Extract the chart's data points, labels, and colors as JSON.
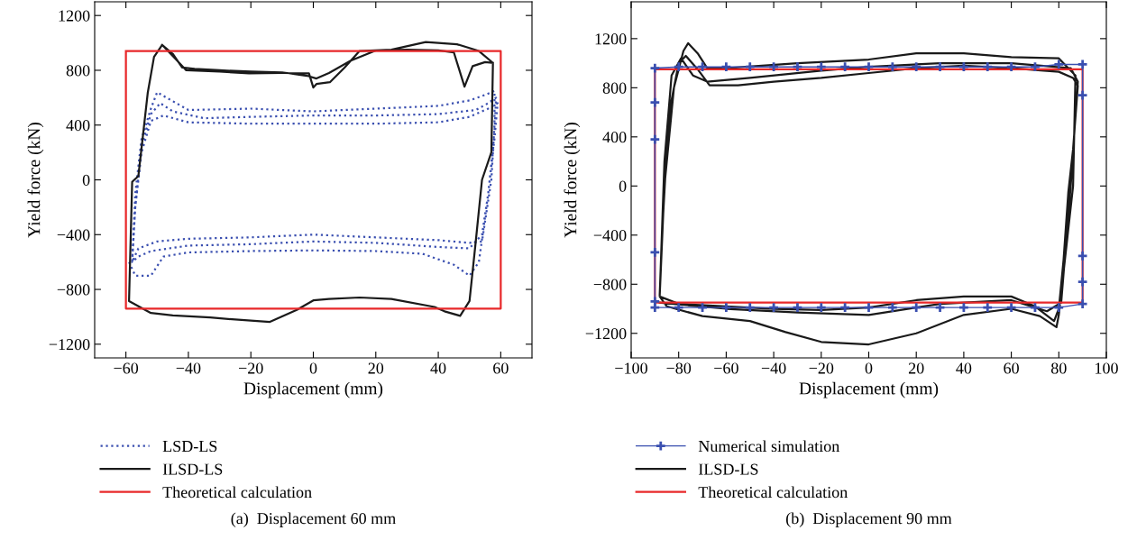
{
  "chart_data": [
    {
      "type": "line",
      "xlabel": "Displacement (mm)",
      "ylabel": "Yield force (kN)",
      "xlim": [
        -70,
        70
      ],
      "ylim": [
        -1300,
        1300
      ],
      "xticks": [
        {
          "value": -60,
          "label": "−60"
        },
        {
          "value": -40,
          "label": "−40"
        },
        {
          "value": -20,
          "label": "−20"
        },
        0,
        20,
        40,
        60
      ],
      "yticks": [
        {
          "value": -1200,
          "label": "−1200"
        },
        {
          "value": -800,
          "label": "−800"
        },
        {
          "value": -400,
          "label": "−400"
        },
        0,
        400,
        800,
        1200
      ],
      "grid": false,
      "legend": "bottom",
      "annotations": [
        "(a)  Displacement 60 mm"
      ],
      "series": [
        {
          "name": "LSD-LS",
          "color": "#3a4fb0",
          "line_style": "dotted",
          "x": [
            -58,
            -57,
            -55,
            -52,
            -50,
            -47,
            -40,
            -20,
            0,
            20,
            40,
            50,
            55,
            58,
            58,
            57,
            55,
            54,
            50,
            40,
            20,
            0,
            -20,
            -40,
            -50,
            -56,
            -58,
            -57,
            -55,
            -52,
            -49,
            -45,
            -35,
            -20,
            0,
            20,
            40,
            52,
            56,
            58.5,
            58,
            56,
            54,
            50,
            40,
            20,
            0,
            -20,
            -40,
            -52,
            -56,
            -58,
            -57,
            -55,
            -52,
            -48,
            -40,
            -20,
            0,
            20,
            40,
            50,
            56,
            59,
            58,
            56,
            53,
            50,
            45,
            35,
            20,
            0,
            -20,
            -40,
            -48,
            -52,
            -57,
            -59
          ],
          "values": [
            -600,
            -100,
            300,
            520,
            640,
            600,
            510,
            520,
            500,
            520,
            540,
            580,
            620,
            650,
            400,
            0,
            -300,
            -450,
            -460,
            -440,
            -420,
            -400,
            -420,
            -430,
            -450,
            -500,
            -600,
            -200,
            250,
            480,
            560,
            500,
            450,
            460,
            470,
            470,
            480,
            510,
            560,
            600,
            350,
            -100,
            -400,
            -500,
            -490,
            -460,
            -450,
            -470,
            -480,
            -520,
            -560,
            -600,
            -200,
            200,
            430,
            470,
            420,
            410,
            410,
            410,
            420,
            460,
            520,
            560,
            300,
            -100,
            -600,
            -700,
            -620,
            -540,
            -520,
            -515,
            -520,
            -530,
            -560,
            -700,
            -700,
            -600
          ]
        },
        {
          "name": "ILSD-LS",
          "color": "#1a1a1a",
          "line_style": "solid",
          "x": [
            -48.4,
            -44,
            -40.7,
            -30,
            -20.6,
            -10,
            -1.4,
            0,
            1,
            5.3,
            10,
            14.8,
            25,
            36,
            46,
            53,
            57.5,
            57,
            54,
            52,
            50,
            47,
            42,
            38.8,
            25,
            14.8,
            5,
            0,
            -5.3,
            -13.9,
            -25,
            -33,
            -45,
            -52,
            -59,
            -58,
            -56,
            -53,
            -51,
            -48.4,
            -45,
            -42,
            -38,
            -30,
            -20,
            -10,
            -2,
            1,
            5,
            12,
            20,
            30,
            40,
            45,
            48.4,
            51,
            55,
            57.5
          ],
          "values": [
            985,
            880,
            800,
            790,
            778,
            780,
            778,
            674,
            700,
            713,
            820,
            941,
            950,
            1006,
            990,
            941,
            854,
            202,
            0,
            -450,
            -885,
            -993,
            -960,
            -928,
            -870,
            -859,
            -870,
            -880,
            -950,
            -1037,
            -1020,
            -1004,
            -990,
            -972,
            -885,
            -15,
            28,
            637,
            898,
            985,
            920,
            820,
            810,
            800,
            790,
            785,
            760,
            740,
            780,
            870,
            945,
            950,
            945,
            930,
            680,
            830,
            860,
            854
          ]
        },
        {
          "name": "Theoretical calculation",
          "color": "#e8282a",
          "line_style": "solid",
          "x": [
            -60,
            60,
            60,
            -60,
            -60,
            -50
          ],
          "values": [
            940,
            940,
            -940,
            -940,
            940,
            940
          ]
        }
      ]
    },
    {
      "type": "line",
      "xlabel": "Displacement (mm)",
      "ylabel": "Yield force (kN)",
      "xlim": [
        -100,
        100
      ],
      "ylim": [
        -1400,
        1500
      ],
      "xticks": [
        {
          "value": -100,
          "label": "−100"
        },
        {
          "value": -80,
          "label": "−80"
        },
        {
          "value": -60,
          "label": "−60"
        },
        {
          "value": -40,
          "label": "−40"
        },
        {
          "value": -20,
          "label": "−20"
        },
        0,
        20,
        40,
        60,
        80,
        100
      ],
      "yticks": [
        {
          "value": -1200,
          "label": "−1200"
        },
        {
          "value": -800,
          "label": "−800"
        },
        {
          "value": -400,
          "label": "−400"
        },
        0,
        400,
        800,
        1200
      ],
      "grid": false,
      "legend": "bottom",
      "annotations": [
        "(b)  Displacement 90 mm"
      ],
      "series": [
        {
          "name": "Numerical simulation",
          "color": "#3a4fb0",
          "line_style": "solid",
          "marker": "cross",
          "x": [
            -90,
            -90,
            -90,
            -90,
            -90,
            -80,
            -70,
            -60,
            -50,
            -40,
            -30,
            -20,
            -10,
            0,
            10,
            20,
            30,
            40,
            50,
            60,
            70,
            80,
            90,
            90,
            90,
            90,
            90,
            80,
            70,
            60,
            50,
            40,
            30,
            20,
            10,
            0,
            -10,
            -20,
            -30,
            -40,
            -50,
            -60,
            -70,
            -80,
            -90
          ],
          "values": [
            -940,
            -540,
            380,
            680,
            960,
            970,
            970,
            970,
            970,
            970,
            970,
            970,
            970,
            970,
            970,
            970,
            970,
            970,
            970,
            970,
            970,
            990,
            990,
            740,
            -570,
            -780,
            -960,
            -990,
            -990,
            -990,
            -990,
            -990,
            -990,
            -990,
            -990,
            -990,
            -990,
            -990,
            -990,
            -990,
            -990,
            -990,
            -990,
            -990,
            -990
          ]
        },
        {
          "name": "ILSD-LS",
          "color": "#1a1a1a",
          "line_style": "solid",
          "x": [
            -88,
            -87,
            -85,
            -83,
            -80,
            -77,
            -72,
            -67,
            -55,
            -40,
            -20,
            0,
            20,
            40,
            60,
            80,
            86,
            88,
            86,
            84,
            82,
            80,
            78,
            70,
            60,
            40,
            20,
            0,
            -20,
            -40,
            -60,
            -80,
            -88,
            -86,
            -82,
            -78,
            -76,
            -72,
            -68,
            -60,
            -30,
            0,
            20,
            40,
            60,
            80,
            87,
            86,
            80,
            79,
            72,
            60,
            40,
            20,
            0,
            -20,
            -35,
            -50,
            -70,
            -85,
            -88,
            -86,
            -83,
            -79,
            -74,
            -68,
            -50,
            -20,
            0,
            30,
            60,
            85,
            88,
            85,
            81,
            75,
            60,
            30,
            0,
            -30,
            -60,
            -88
          ],
          "values": [
            -890,
            -400,
            300,
            700,
            1000,
            1060,
            950,
            820,
            820,
            850,
            880,
            920,
            960,
            980,
            960,
            930,
            880,
            816,
            300,
            -50,
            -600,
            -1000,
            -1100,
            -980,
            -900,
            -900,
            -930,
            -990,
            -1010,
            -1000,
            -980,
            -960,
            -900,
            0,
            800,
            1100,
            1163,
            1080,
            960,
            960,
            1000,
            1030,
            1080,
            1080,
            1050,
            1040,
            900,
            0,
            -1050,
            -1150,
            -1060,
            -1000,
            -1050,
            -1200,
            -1290,
            -1270,
            -1190,
            -1100,
            -1060,
            -980,
            -900,
            200,
            900,
            1040,
            900,
            850,
            880,
            940,
            970,
            1000,
            1000,
            960,
            850,
            0,
            -950,
            -1020,
            -930,
            -960,
            -1050,
            -1030,
            -1000,
            -950
          ]
        },
        {
          "name": "Theoretical calculation",
          "color": "#e8282a",
          "line_style": "solid",
          "x": [
            -90,
            90,
            90,
            -90,
            -90,
            -80
          ],
          "values": [
            950,
            950,
            -950,
            -950,
            950,
            950
          ]
        }
      ]
    }
  ]
}
